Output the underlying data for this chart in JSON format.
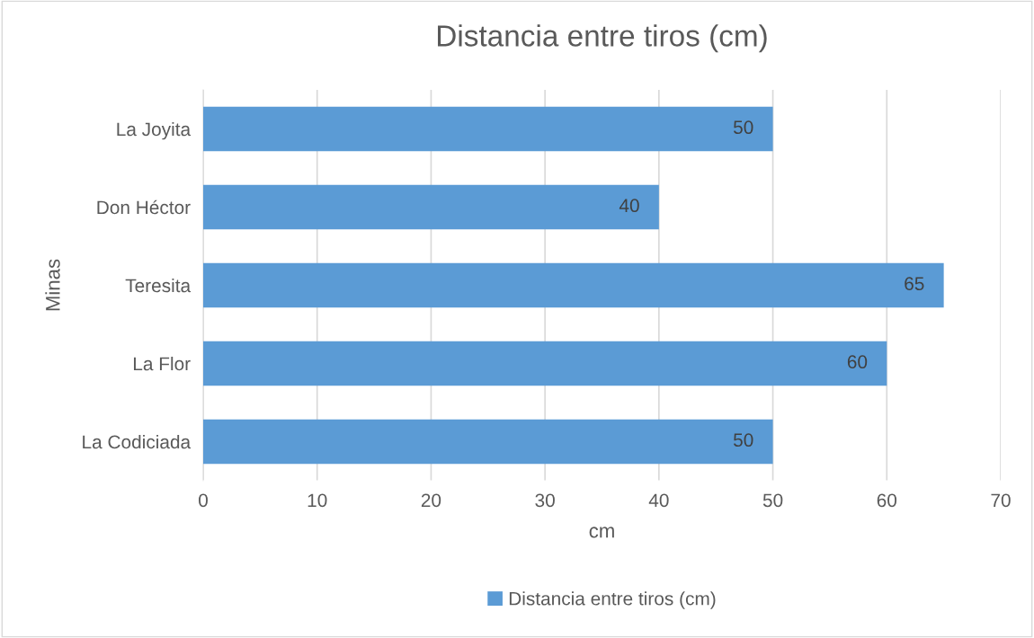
{
  "chart_data": {
    "type": "bar",
    "orientation": "horizontal",
    "title": "Distancia entre tiros (cm)",
    "xlabel": "cm",
    "ylabel": "Minas",
    "categories": [
      "La Joyita",
      "Don Héctor",
      "Teresita",
      "La Flor",
      "La Codiciada"
    ],
    "series": [
      {
        "name": "Distancia entre tiros (cm)",
        "color": "#5b9bd5",
        "values": [
          50,
          40,
          65,
          60,
          50
        ]
      }
    ],
    "xlim": [
      0,
      70
    ],
    "xticks": [
      0,
      10,
      20,
      30,
      40,
      50,
      60,
      70
    ],
    "grid": "x",
    "legend": "bottom",
    "data_labels": true
  }
}
